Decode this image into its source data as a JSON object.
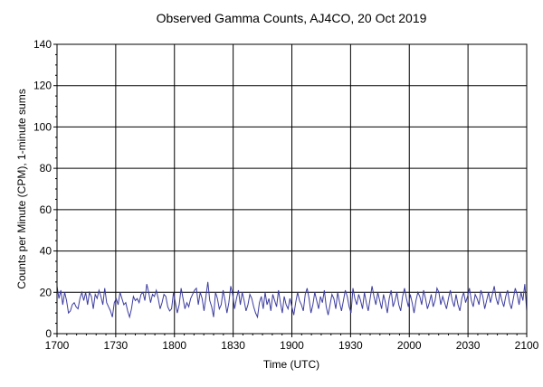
{
  "chart_data": {
    "type": "line",
    "title": "Observed Gamma Counts, AJ4CO, 20 Oct 2019",
    "xlabel": "Time (UTC)",
    "ylabel": "Counts per Minute (CPM), 1-minute sums",
    "x_tick_labels": [
      "1700",
      "1730",
      "1800",
      "1830",
      "1900",
      "1930",
      "2000",
      "2030",
      "2100"
    ],
    "x_range_minutes": [
      0,
      240
    ],
    "y_ticks": [
      0,
      20,
      40,
      60,
      80,
      100,
      120,
      140
    ],
    "ylim": [
      0,
      140
    ],
    "grid": true,
    "line_color": "#3c3ca0",
    "series": [
      {
        "values": [
          23,
          17,
          21,
          14,
          20,
          16,
          10,
          11,
          14,
          15,
          13,
          12,
          17,
          20,
          16,
          20,
          14,
          20,
          18,
          12,
          19,
          17,
          21,
          18,
          14,
          22,
          15,
          13,
          11,
          8,
          15,
          17,
          14,
          20,
          17,
          14,
          15,
          11,
          8,
          12,
          18,
          16,
          17,
          15,
          19,
          20,
          16,
          24,
          20,
          15,
          19,
          18,
          21,
          17,
          12,
          15,
          19,
          18,
          13,
          11,
          12,
          20,
          15,
          10,
          14,
          22,
          17,
          12,
          15,
          13,
          17,
          19,
          21,
          22,
          14,
          20,
          17,
          11,
          18,
          25,
          16,
          13,
          8,
          20,
          17,
          12,
          14,
          21,
          16,
          10,
          15,
          23,
          19,
          12,
          17,
          21,
          14,
          20,
          16,
          11,
          14,
          19,
          17,
          13,
          10,
          8,
          15,
          18,
          12,
          20,
          14,
          17,
          11,
          19,
          16,
          13,
          21,
          15,
          10,
          18,
          14,
          12,
          17,
          13,
          9,
          15,
          20,
          16,
          14,
          11,
          19,
          22,
          17,
          10,
          14,
          20,
          16,
          12,
          18,
          15,
          21,
          13,
          9,
          14,
          19,
          17,
          12,
          20,
          15,
          11,
          16,
          21,
          18,
          13,
          10,
          22,
          17,
          14,
          19,
          16,
          12,
          20,
          15,
          11,
          17,
          23,
          18,
          14,
          20,
          16,
          12,
          19,
          15,
          10,
          17,
          21,
          13,
          16,
          20,
          14,
          11,
          18,
          22,
          17,
          13,
          19,
          15,
          10,
          16,
          20,
          18,
          14,
          21,
          17,
          12,
          15,
          19,
          13,
          16,
          22,
          20,
          14,
          18,
          15,
          12,
          17,
          21,
          16,
          13,
          19,
          14,
          11,
          17,
          20,
          15,
          18,
          22,
          16,
          13,
          19,
          17,
          14,
          21,
          18,
          12,
          16,
          20,
          15,
          19,
          23,
          17,
          14,
          20,
          16,
          13,
          18,
          21,
          15,
          12,
          17,
          22,
          19,
          14,
          20,
          16,
          24,
          11
        ]
      }
    ]
  }
}
